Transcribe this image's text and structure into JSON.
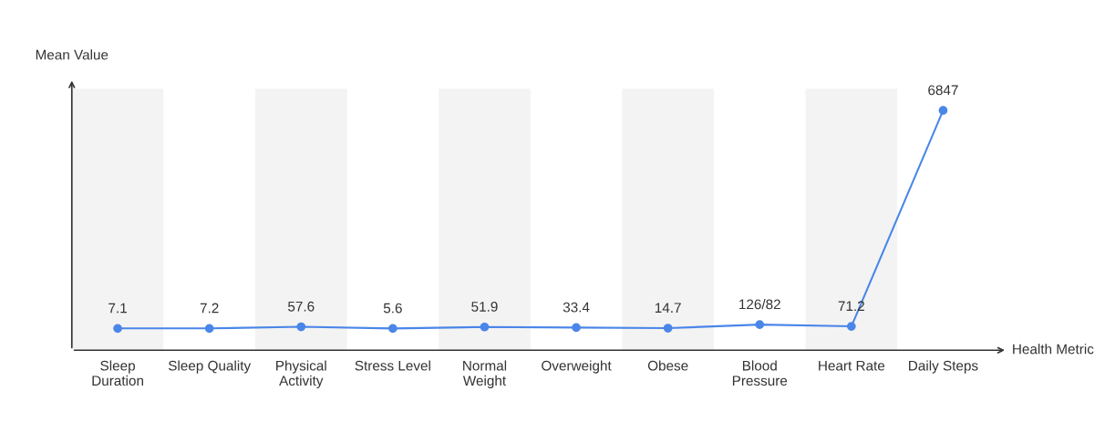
{
  "chart_data": {
    "type": "line",
    "xlabel": "Health Metric",
    "ylabel": "Mean Value",
    "categories": [
      "Sleep\nDuration",
      "Sleep Quality",
      "Physical\nActivity",
      "Stress Level",
      "Normal\nWeight",
      "Overweight",
      "Obese",
      "Blood\nPressure",
      "Heart Rate",
      "Daily Steps"
    ],
    "series": [
      {
        "color": "#4a86e8",
        "values": [
          7.1,
          7.2,
          57.6,
          5.6,
          51.9,
          33.4,
          14.7,
          126,
          71.2,
          6847
        ],
        "value_labels": [
          "7.1",
          "7.2",
          "57.6",
          "5.6",
          "51.9",
          "33.4",
          "14.7",
          "126/82",
          "71.2",
          "6847"
        ]
      }
    ],
    "marker": "circle",
    "line_style": "solid",
    "grid": false,
    "tick_labels": "x"
  }
}
